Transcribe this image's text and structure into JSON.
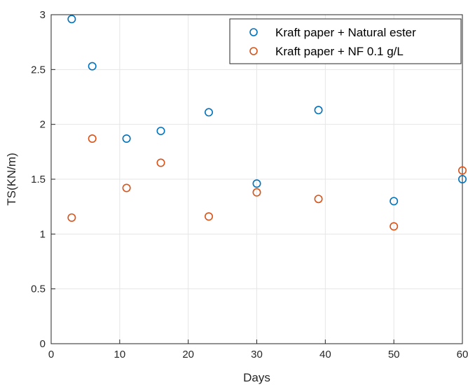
{
  "chart_data": {
    "type": "scatter",
    "title": "",
    "xlabel": "Days",
    "ylabel": "TS(KN/m)",
    "xlim": [
      0,
      60
    ],
    "ylim": [
      0,
      3
    ],
    "xticks": [
      0,
      10,
      20,
      30,
      40,
      50,
      60
    ],
    "xtick_labels": [
      "0",
      "10",
      "20",
      "30",
      "40",
      "50",
      "60"
    ],
    "yticks": [
      0,
      0.5,
      1,
      1.5,
      2,
      2.5,
      3
    ],
    "ytick_labels": [
      "0",
      "0.5",
      "1",
      "1.5",
      "2",
      "2.5",
      "3"
    ],
    "grid": true,
    "legend_position": "top-right",
    "series": [
      {
        "name": "Kraft paper + Natural ester",
        "color": "#0072BD",
        "marker": "open-circle",
        "x": [
          3,
          6,
          11,
          16,
          23,
          30,
          39,
          50,
          60
        ],
        "y": [
          2.96,
          2.53,
          1.87,
          1.94,
          2.11,
          1.46,
          2.13,
          1.3,
          1.5
        ]
      },
      {
        "name": "Kraft paper + NF 0.1 g/L",
        "color": "#D95319",
        "marker": "open-circle",
        "x": [
          3,
          6,
          11,
          16,
          23,
          30,
          39,
          50,
          60
        ],
        "y": [
          1.15,
          1.87,
          1.42,
          1.65,
          1.16,
          1.38,
          1.32,
          1.07,
          1.58
        ]
      }
    ]
  }
}
